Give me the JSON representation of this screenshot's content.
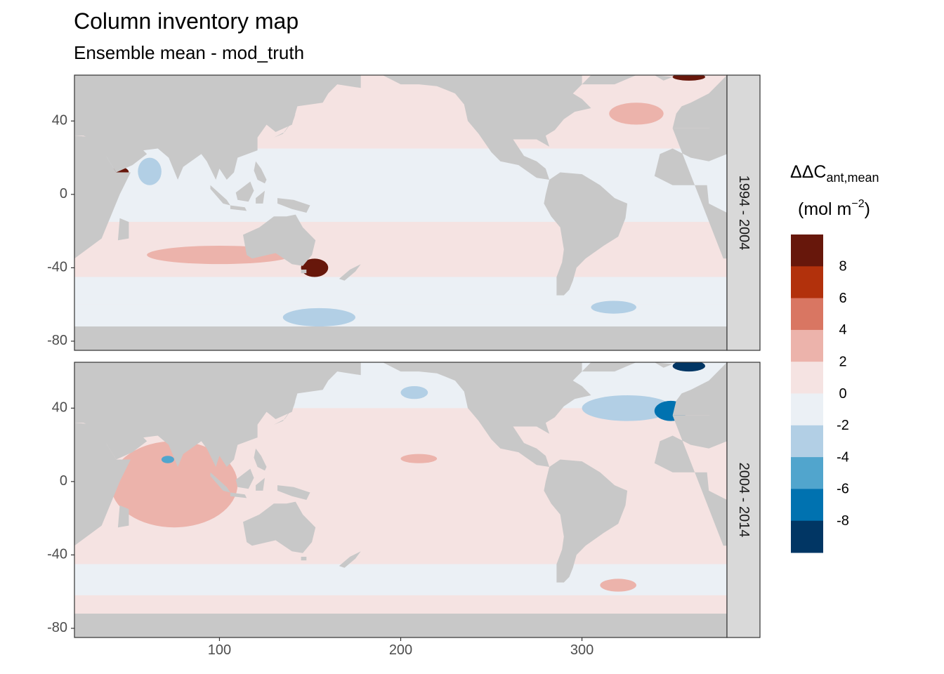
{
  "chart_data": {
    "type": "heatmap",
    "title": "Column inventory map",
    "subtitle": "Ensemble mean - mod_truth",
    "xlabel": "",
    "ylabel": "",
    "xlim": [
      20,
      380
    ],
    "ylim": [
      -85,
      65
    ],
    "x_ticks": [
      100,
      200,
      300
    ],
    "y_ticks": [
      40,
      0,
      -40,
      -80
    ],
    "facet_orientation": "rows",
    "panels": [
      {
        "label": "1994 - 2004",
        "anomalies": [
          {
            "lon": [
              40,
              50
            ],
            "lat": [
              9,
              15
            ],
            "value": 9
          },
          {
            "lon": [
              55,
              68
            ],
            "lat": [
              5,
              20
            ],
            "value": -3
          },
          {
            "lon": [
              60,
              140
            ],
            "lat": [
              -38,
              -28
            ],
            "value": 3
          },
          {
            "lon": [
              145,
              160
            ],
            "lat": [
              -45,
              -35
            ],
            "value": 8
          },
          {
            "lon": [
              135,
              175
            ],
            "lat": [
              -72,
              -62
            ],
            "value": -3
          },
          {
            "lon": [
              315,
              345
            ],
            "lat": [
              38,
              50
            ],
            "value": 3
          },
          {
            "lon": [
              350,
              368
            ],
            "lat": [
              62,
              66
            ],
            "value": 9
          },
          {
            "lon": [
              305,
              330
            ],
            "lat": [
              -65,
              -58
            ],
            "value": -3
          }
        ]
      },
      {
        "label": "2004 - 2014",
        "anomalies": [
          {
            "lon": [
              40,
              110
            ],
            "lat": [
              -25,
              22
            ],
            "value": 3
          },
          {
            "lon": [
              300,
              350
            ],
            "lat": [
              33,
              47
            ],
            "value": -3
          },
          {
            "lon": [
              340,
              358
            ],
            "lat": [
              33,
              44
            ],
            "value": -8
          },
          {
            "lon": [
              350,
              368
            ],
            "lat": [
              60,
              66
            ],
            "value": -9
          },
          {
            "lon": [
              200,
              220
            ],
            "lat": [
              10,
              15
            ],
            "value": 3
          },
          {
            "lon": [
              310,
              330
            ],
            "lat": [
              -60,
              -53
            ],
            "value": 3
          },
          {
            "lon": [
              68,
              75
            ],
            "lat": [
              10,
              14
            ],
            "value": -6
          },
          {
            "lon": [
              200,
              215
            ],
            "lat": [
              45,
              52
            ],
            "value": -3
          }
        ]
      }
    ],
    "legend": {
      "title": "ΔΔC",
      "title_subscript": "ant,mean",
      "unit": "(mol m",
      "unit_superscript": "−2",
      "unit_close": ")",
      "placement": "right",
      "breaks": [
        8,
        6,
        4,
        2,
        0,
        -2,
        -4,
        -6,
        -8
      ],
      "bins": [
        {
          "lo": 8,
          "hi": 10,
          "color": "#67170b"
        },
        {
          "lo": 6,
          "hi": 8,
          "color": "#b2310c"
        },
        {
          "lo": 4,
          "hi": 6,
          "color": "#d97662"
        },
        {
          "lo": 2,
          "hi": 4,
          "color": "#ecb3ab"
        },
        {
          "lo": 0,
          "hi": 2,
          "color": "#f5e3e2"
        },
        {
          "lo": -2,
          "hi": 0,
          "color": "#ebf0f5"
        },
        {
          "lo": -4,
          "hi": -2,
          "color": "#b2cfe5"
        },
        {
          "lo": -6,
          "hi": -4,
          "color": "#51a5cd"
        },
        {
          "lo": -8,
          "hi": -6,
          "color": "#0072b0"
        },
        {
          "lo": -10,
          "hi": -8,
          "color": "#013664"
        }
      ]
    },
    "land_color": "#c8c8c8",
    "strip_color": "#d9d9d9"
  }
}
